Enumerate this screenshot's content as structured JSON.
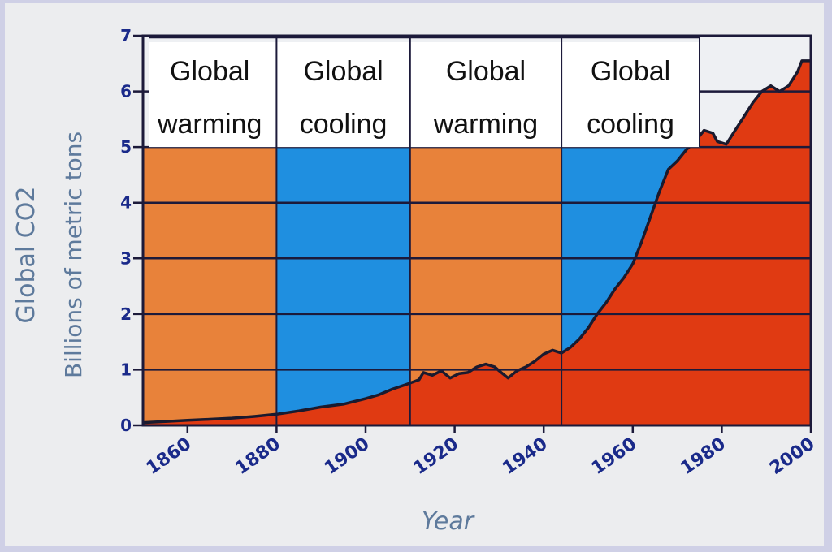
{
  "chart_data": {
    "type": "area",
    "title": "",
    "ylabel": "Global CO2",
    "ylabel_sub": "Billions of metric tons",
    "xlabel": "Year",
    "xlim": [
      1850,
      2000
    ],
    "ylim": [
      0,
      7
    ],
    "xticks": [
      "1860",
      "1880",
      "1900",
      "1920",
      "1940",
      "1960",
      "1980",
      "2000"
    ],
    "yticks": [
      "0",
      "1",
      "2",
      "3",
      "4",
      "5",
      "6",
      "7"
    ],
    "grid": true,
    "colors": {
      "area": "#e03a12",
      "line": "#1a1a2e",
      "warming": "#e8823a",
      "cooling": "#1f8fe0",
      "label_bg": "#ffffff",
      "plot_bg": "#eef0f3",
      "axis_text": "#1a2a8a"
    },
    "bands": [
      {
        "start": 1850,
        "end": 1880,
        "type": "warming",
        "line1": "Global",
        "line2": "warming"
      },
      {
        "start": 1880,
        "end": 1910,
        "type": "cooling",
        "line1": "Global",
        "line2": "cooling"
      },
      {
        "start": 1910,
        "end": 1944,
        "type": "warming",
        "line1": "Global",
        "line2": "warming"
      },
      {
        "start": 1944,
        "end": 1975,
        "type": "cooling",
        "line1": "Global",
        "line2": "cooling"
      }
    ],
    "series": [
      {
        "x": [
          1850,
          1855,
          1860,
          1865,
          1870,
          1875,
          1880,
          1885,
          1890,
          1895,
          1900,
          1903,
          1906,
          1909,
          1912,
          1913,
          1915,
          1917,
          1919,
          1921,
          1923,
          1925,
          1927,
          1929,
          1930,
          1932,
          1934,
          1936,
          1938,
          1940,
          1942,
          1944,
          1946,
          1948,
          1950,
          1952,
          1954,
          1956,
          1958,
          1960,
          1962,
          1964,
          1966,
          1968,
          1970,
          1972,
          1974,
          1976,
          1978,
          1979,
          1981,
          1983,
          1985,
          1987,
          1989,
          1991,
          1993,
          1995,
          1997,
          1998,
          2000
        ],
        "y": [
          0.05,
          0.07,
          0.09,
          0.11,
          0.13,
          0.16,
          0.2,
          0.26,
          0.33,
          0.38,
          0.48,
          0.55,
          0.65,
          0.73,
          0.82,
          0.95,
          0.9,
          0.98,
          0.85,
          0.93,
          0.95,
          1.05,
          1.1,
          1.05,
          0.98,
          0.85,
          0.98,
          1.05,
          1.15,
          1.28,
          1.35,
          1.3,
          1.4,
          1.55,
          1.75,
          2.0,
          2.2,
          2.45,
          2.65,
          2.9,
          3.3,
          3.75,
          4.2,
          4.6,
          4.75,
          4.95,
          5.1,
          5.3,
          5.25,
          5.1,
          5.05,
          5.3,
          5.55,
          5.8,
          6.0,
          6.1,
          6.0,
          6.1,
          6.35,
          6.55,
          6.55
        ]
      }
    ]
  }
}
